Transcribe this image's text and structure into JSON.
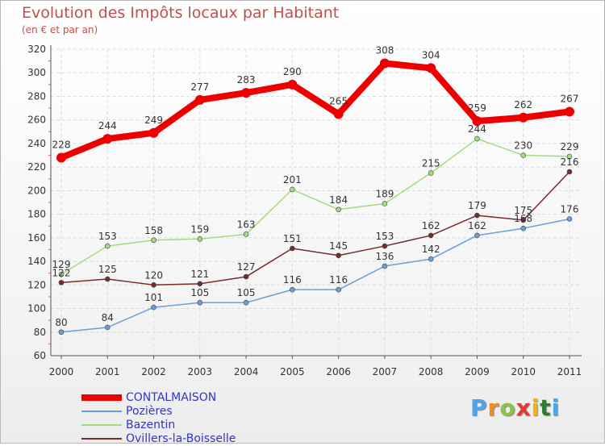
{
  "title": "Evolution des Impôts locaux par Habitant",
  "subtitle": "(en € et par an)",
  "logo": {
    "text": "Proxiti",
    "letters": [
      "P",
      "r",
      "o",
      "x",
      "i",
      "t",
      "i"
    ],
    "colors": [
      "#4da6e8",
      "#f28c1b",
      "#8bc34a",
      "#e53935",
      "#f5b400",
      "#2e7d32",
      "#4da6e8"
    ]
  },
  "chart_data": {
    "type": "line",
    "categories": [
      "2000",
      "2001",
      "2002",
      "2003",
      "2004",
      "2005",
      "2006",
      "2007",
      "2008",
      "2009",
      "2010",
      "2011"
    ],
    "ylim": [
      60,
      320
    ],
    "yticks": [
      60,
      80,
      100,
      120,
      140,
      160,
      180,
      200,
      220,
      240,
      260,
      280,
      300,
      320
    ],
    "grid": true,
    "legend_position": "bottom-left",
    "series": [
      {
        "name": "CONTALMAISON",
        "color": "#ee0000",
        "values": [
          228,
          244,
          249,
          277,
          283,
          290,
          265,
          308,
          304,
          259,
          262,
          267
        ],
        "labels": [
          "228",
          "244",
          "249",
          "277",
          "283",
          "290",
          "265",
          "308",
          "304",
          "259",
          "262",
          "267"
        ]
      },
      {
        "name": "Pozières",
        "color": "#6a9fd8",
        "values": [
          80,
          84,
          101,
          105,
          105,
          116,
          116,
          136,
          142,
          162,
          168,
          176
        ],
        "labels": [
          "80",
          "84",
          "101",
          "105",
          "105",
          "116",
          "116",
          "136",
          "142",
          "162",
          "168",
          "176"
        ]
      },
      {
        "name": "Bazentin",
        "color": "#a3dc7e",
        "values": [
          129,
          153,
          158,
          159,
          163,
          201,
          184,
          189,
          215,
          244,
          230,
          229
        ],
        "labels": [
          "129",
          "153",
          "158",
          "159",
          "163",
          "201",
          "184",
          "189",
          "215",
          "244",
          "230",
          "229"
        ]
      },
      {
        "name": "Ovillers-la-Boisselle",
        "color": "#7a2a2a",
        "values": [
          122,
          125,
          120,
          121,
          127,
          151,
          145,
          153,
          162,
          179,
          175,
          216
        ],
        "labels": [
          "122",
          "125",
          "120",
          "121",
          "127",
          "151",
          "145",
          "153",
          "162",
          "179",
          "175",
          "216"
        ]
      }
    ]
  }
}
